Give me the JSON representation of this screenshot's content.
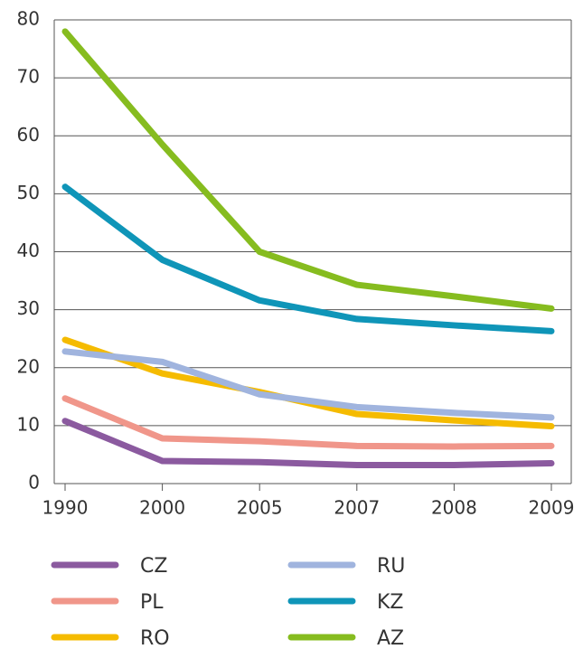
{
  "chart_data": {
    "type": "line",
    "categories": [
      "1990",
      "2000",
      "2005",
      "2007",
      "2008",
      "2009"
    ],
    "series": [
      {
        "name": "CZ",
        "color": "#8b5a9f",
        "values": [
          10.8,
          3.9,
          3.7,
          3.2,
          3.2,
          3.5
        ]
      },
      {
        "name": "PL",
        "color": "#f0968a",
        "values": [
          14.7,
          7.8,
          7.3,
          6.5,
          6.4,
          6.5
        ]
      },
      {
        "name": "RO",
        "color": "#f5bb00",
        "values": [
          24.8,
          19,
          15.8,
          12,
          10.9,
          9.9
        ]
      },
      {
        "name": "RU",
        "color": "#a0b4de",
        "values": [
          22.8,
          21,
          15.4,
          13.2,
          12.2,
          11.4
        ]
      },
      {
        "name": "KZ",
        "color": "#0f95b8",
        "values": [
          51.2,
          38.6,
          31.6,
          28.4,
          27.3,
          26.3
        ]
      },
      {
        "name": "AZ",
        "color": "#86bc1f",
        "values": [
          78,
          58.5,
          40,
          34.3,
          32.3,
          30.2
        ]
      }
    ],
    "ylim": [
      0,
      80
    ],
    "yticks": [
      0,
      10,
      20,
      30,
      40,
      50,
      60,
      70,
      80
    ],
    "grid": true
  }
}
